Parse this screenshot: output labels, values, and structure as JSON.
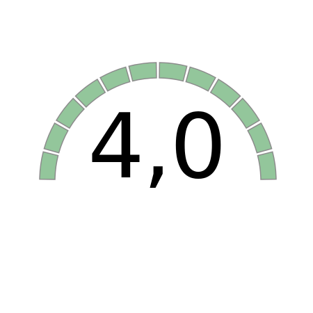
{
  "gauge": {
    "value_text": "4,0",
    "segment_count": 12,
    "filled_fraction": 1.0,
    "colors": {
      "segment_fill": "#93c69b",
      "segment_stroke": "#8c8c8c",
      "text": "#000000",
      "background": "#ffffff"
    }
  }
}
